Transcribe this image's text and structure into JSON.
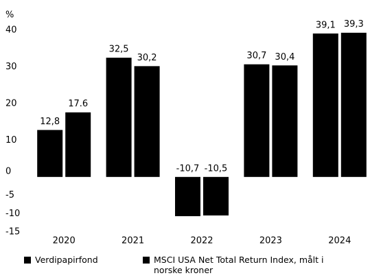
{
  "chart_data": {
    "type": "bar",
    "y_label": "%",
    "categories": [
      "2020",
      "2021",
      "2022",
      "2023",
      "2024"
    ],
    "series": [
      {
        "name": "Verdipapirfond",
        "color": "#000000",
        "values": [
          12.8,
          32.5,
          -10.7,
          30.7,
          39.1
        ],
        "value_labels": [
          "12,8",
          "32,5",
          "-10,7",
          "30,7",
          "39,1"
        ]
      },
      {
        "name": "MSCI USA Net Total Return Index, målt i norske kroner",
        "color": "#000000",
        "values": [
          17.6,
          30.2,
          -10.5,
          30.4,
          39.3
        ],
        "value_labels": [
          "17.6",
          "30,2",
          "-10,5",
          "30,4",
          "39,3"
        ]
      }
    ],
    "ylim": [
      -15,
      40
    ],
    "yticks": [
      40,
      30,
      20,
      10,
      0,
      -5,
      -10,
      -15
    ],
    "grid": false,
    "legend": "bottom"
  }
}
